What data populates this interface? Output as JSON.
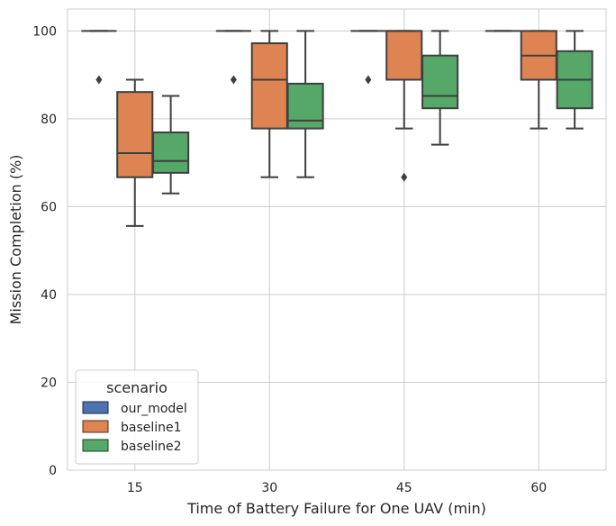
{
  "chart_data": {
    "type": "box",
    "xlabel": "Time of Battery Failure for One UAV (min)",
    "ylabel": "Mission Completion (%)",
    "ylim": [
      0,
      105
    ],
    "yticks": [
      0,
      20,
      40,
      60,
      80,
      100
    ],
    "categories": [
      "15",
      "30",
      "45",
      "60"
    ],
    "grid": true,
    "legend": {
      "title": "scenario",
      "placement": "lower-left"
    },
    "series": [
      {
        "name": "our_model",
        "color": "#4c72b0",
        "boxes": [
          {
            "q1": 100,
            "median": 100,
            "q3": 100,
            "whisker_low": 100,
            "whisker_high": 100,
            "outliers": [
              88.9
            ]
          },
          {
            "q1": 100,
            "median": 100,
            "q3": 100,
            "whisker_low": 100,
            "whisker_high": 100,
            "outliers": [
              88.9
            ]
          },
          {
            "q1": 100,
            "median": 100,
            "q3": 100,
            "whisker_low": 100,
            "whisker_high": 100,
            "outliers": [
              88.9
            ]
          },
          {
            "q1": 100,
            "median": 100,
            "q3": 100,
            "whisker_low": 100,
            "whisker_high": 100,
            "outliers": []
          }
        ]
      },
      {
        "name": "baseline1",
        "color": "#dd8452",
        "boxes": [
          {
            "q1": 66.7,
            "median": 72.2,
            "q3": 86.1,
            "whisker_low": 55.6,
            "whisker_high": 88.9,
            "outliers": []
          },
          {
            "q1": 77.8,
            "median": 88.9,
            "q3": 97.2,
            "whisker_low": 66.7,
            "whisker_high": 100,
            "outliers": []
          },
          {
            "q1": 88.9,
            "median": 100,
            "q3": 100,
            "whisker_low": 77.8,
            "whisker_high": 100,
            "outliers": [
              66.7
            ]
          },
          {
            "q1": 88.9,
            "median": 94.4,
            "q3": 100,
            "whisker_low": 77.8,
            "whisker_high": 100,
            "outliers": []
          }
        ]
      },
      {
        "name": "baseline2",
        "color": "#55a868",
        "boxes": [
          {
            "q1": 67.7,
            "median": 70.4,
            "q3": 76.9,
            "whisker_low": 63.0,
            "whisker_high": 85.2,
            "outliers": []
          },
          {
            "q1": 77.8,
            "median": 79.6,
            "q3": 88.0,
            "whisker_low": 66.7,
            "whisker_high": 100,
            "outliers": []
          },
          {
            "q1": 82.4,
            "median": 85.2,
            "q3": 94.4,
            "whisker_low": 74.1,
            "whisker_high": 100,
            "outliers": []
          },
          {
            "q1": 82.4,
            "median": 88.9,
            "q3": 95.4,
            "whisker_low": 77.8,
            "whisker_high": 100,
            "outliers": []
          }
        ]
      }
    ]
  }
}
